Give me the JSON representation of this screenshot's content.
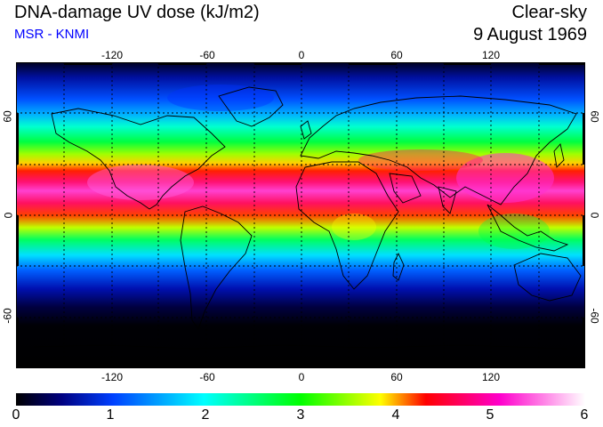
{
  "header": {
    "title": "DNA-damage UV dose (kJ/m2)",
    "source": "MSR - KNMI",
    "condition": "Clear-sky",
    "date": "9 August 1969"
  },
  "map": {
    "lon_ticks": [
      "-120",
      "-60",
      "0",
      "60",
      "120"
    ],
    "lat_ticks": [
      "60",
      "0",
      "-60"
    ],
    "lon_range": [
      -180,
      180
    ],
    "lat_range": [
      -90,
      90
    ],
    "grid": true
  },
  "colorbar": {
    "labels": [
      "0",
      "1",
      "2",
      "3",
      "4",
      "5",
      "6"
    ],
    "range": [
      0,
      6
    ],
    "colors": [
      "#000000",
      "#000080",
      "#0000ff",
      "#00ffff",
      "#00ff00",
      "#ffff00",
      "#ff0000",
      "#ff00cc",
      "#ffffff"
    ]
  }
}
